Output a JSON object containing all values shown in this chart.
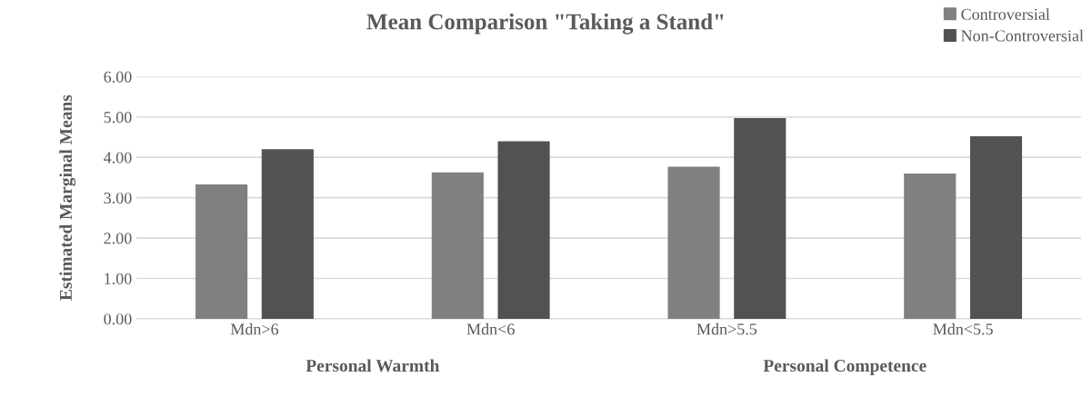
{
  "chart_data": {
    "type": "bar",
    "title": "Mean Comparison \"Taking a Stand\"",
    "ylabel": "Estimated Marginal Means",
    "categories": [
      "Mdn>6",
      "Mdn<6",
      "Mdn>5.5",
      "Mdn<5.5"
    ],
    "series": [
      {
        "name": "Controversial",
        "color": "#808080",
        "values": [
          3.33,
          3.63,
          3.77,
          3.6
        ]
      },
      {
        "name": "Non-Controversial",
        "color": "#525252",
        "values": [
          4.2,
          4.4,
          4.97,
          4.52
        ]
      }
    ],
    "ylim": [
      0,
      6
    ],
    "yticks": [
      {
        "value": 0,
        "label": "0.00"
      },
      {
        "value": 1,
        "label": "1.00"
      },
      {
        "value": 2,
        "label": "2.00"
      },
      {
        "value": 3,
        "label": "3.00"
      },
      {
        "value": 4,
        "label": "4.00"
      },
      {
        "value": 5,
        "label": "5.00"
      },
      {
        "value": 6,
        "label": "6.00"
      }
    ],
    "grid": "y",
    "legend": "top right",
    "annotations": [
      "Personal Warmth",
      "Personal Competence"
    ]
  }
}
